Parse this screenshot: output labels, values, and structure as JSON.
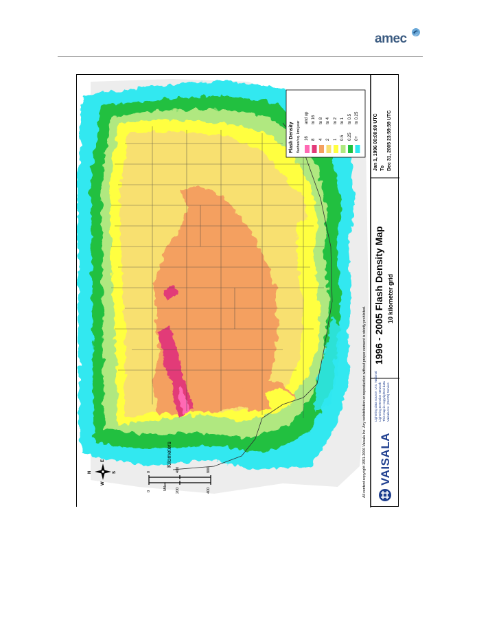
{
  "header": {
    "logo_text": "amec",
    "logo_mark_icon": "amec-swirl-icon"
  },
  "map": {
    "title": "1996 - 2005 Flash Density Map",
    "subtitle": "10 kilometer grid",
    "date_range": {
      "start": "Jan 1, 1996 00:00:00 UTC",
      "to": "To",
      "end": "Dec 31, 2005 23:59:59 UTC"
    },
    "copyright": "All content copyright 1991-2006 Vaisala Inc. Any redistribution or reproduction without proper consent is strictly prohibited.",
    "brand": "VAISALA",
    "brand_icon": "vaisala-logo-icon",
    "source_lines": [
      "Lightning data source: U.S. National",
      "Lightning Detection Network",
      "This map is copyrighted data",
      "Vaisala Inc. (NLDN) Service"
    ],
    "compass": {
      "n": "N",
      "s": "S",
      "e": "E",
      "w": "W"
    },
    "scale_bar": {
      "miles_ticks": [
        "0",
        "200",
        "400"
      ],
      "miles_label": "Miles",
      "km_ticks": [
        "0",
        "400",
        "800"
      ],
      "km_label": "Kilometers"
    },
    "legend": {
      "title": "Flash Density",
      "units": "flashes/sq. km/year",
      "items": [
        {
          "range": "16 and up",
          "low": "16",
          "high": "and up",
          "color": "#ff69b4"
        },
        {
          "range": "8 to 16",
          "low": "8",
          "high": "to 16",
          "color": "#e23a78"
        },
        {
          "range": "4 to 8",
          "low": "4",
          "high": "to 8",
          "color": "#f4a060"
        },
        {
          "range": "2 to 4",
          "low": "2",
          "high": "to 4",
          "color": "#f8e070"
        },
        {
          "range": "1 to 2",
          "low": "1",
          "high": "to 2",
          "color": "#ffff40"
        },
        {
          "range": "0.5 to 1",
          "low": "0.5",
          "high": "to 1",
          "color": "#b0e880"
        },
        {
          "range": "0.25 to 0.5",
          "low": "0.25",
          "high": "to 0.5",
          "color": "#20c040"
        },
        {
          "range": "0+ to 0.25",
          "low": "0+",
          "high": "to 0.25",
          "color": "#30e8f0"
        }
      ]
    }
  }
}
